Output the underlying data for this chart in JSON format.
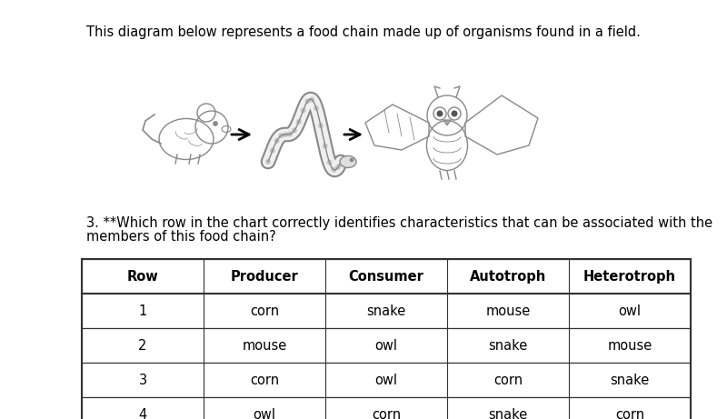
{
  "title_text": "This diagram below represents a food chain made up of organisms found in a field.",
  "question_line1": "3. **Which row in the chart correctly identifies characteristics that can be associated with the",
  "question_line2": "members of this food chain?",
  "table_headers": [
    "Row",
    "Producer",
    "Consumer",
    "Autotroph",
    "Heterotroph"
  ],
  "table_rows": [
    [
      "1",
      "corn",
      "snake",
      "mouse",
      "owl"
    ],
    [
      "2",
      "mouse",
      "owl",
      "snake",
      "mouse"
    ],
    [
      "3",
      "corn",
      "owl",
      "corn",
      "snake"
    ],
    [
      "4",
      "owl",
      "corn",
      "snake",
      "corn"
    ]
  ],
  "bg_color": "#ffffff",
  "text_color": "#000000",
  "title_fontsize": 10.5,
  "question_fontsize": 10.5,
  "table_fontsize": 10.5,
  "animal_color": "#d0d0d0",
  "animal_edge": "#888888",
  "arrow_color": "#000000"
}
